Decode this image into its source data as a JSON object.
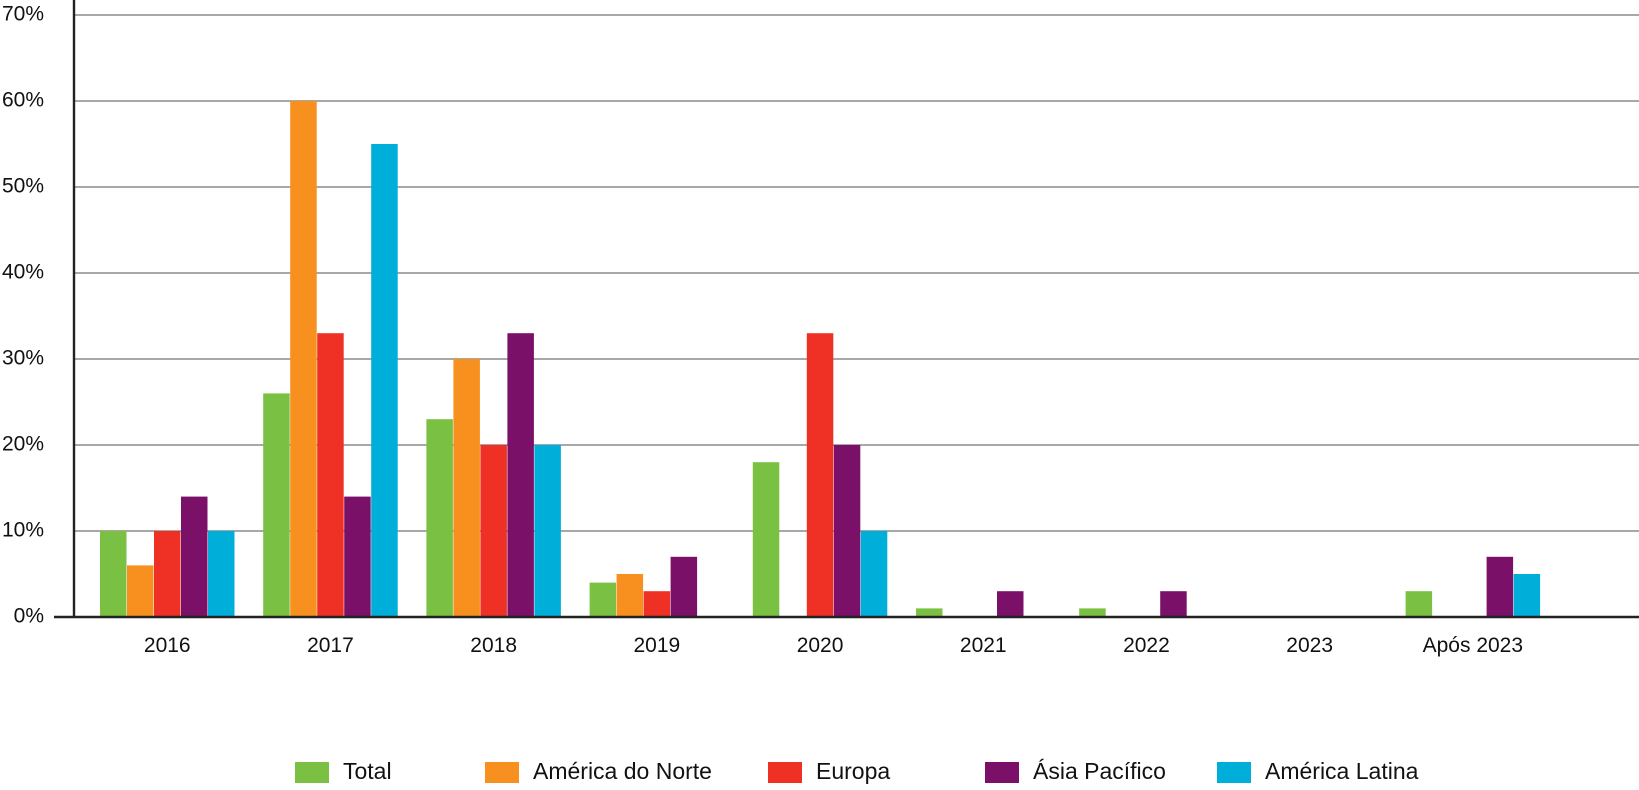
{
  "chart_data": {
    "type": "bar",
    "title": "",
    "xlabel": "",
    "ylabel": "",
    "categories": [
      "2016",
      "2017",
      "2018",
      "2019",
      "2020",
      "2021",
      "2022",
      "2023",
      "Após 2023"
    ],
    "ylim": [
      0,
      70
    ],
    "y_ticks": [
      0,
      10,
      20,
      30,
      40,
      50,
      60,
      70
    ],
    "y_tick_labels": [
      "0%",
      "10%",
      "20%",
      "30%",
      "40%",
      "50%",
      "60%",
      "70%"
    ],
    "grid": true,
    "legend_position": "bottom",
    "series": [
      {
        "name": "Total",
        "color": "#7ac143",
        "values": [
          10,
          26,
          23,
          4,
          18,
          1,
          1,
          0,
          3
        ]
      },
      {
        "name": "América do Norte",
        "color": "#f7901e",
        "values": [
          6,
          60,
          30,
          5,
          0,
          0,
          0,
          0,
          0
        ]
      },
      {
        "name": "Europa",
        "color": "#ee3124",
        "values": [
          10,
          33,
          20,
          3,
          33,
          0,
          0,
          0,
          0
        ]
      },
      {
        "name": "Ásia Pacífico",
        "color": "#7a1068",
        "values": [
          14,
          14,
          33,
          7,
          20,
          3,
          3,
          0,
          7
        ]
      },
      {
        "name": "América Latina",
        "color": "#00aeda",
        "values": [
          10,
          55,
          20,
          0,
          10,
          0,
          0,
          0,
          5
        ]
      }
    ]
  }
}
